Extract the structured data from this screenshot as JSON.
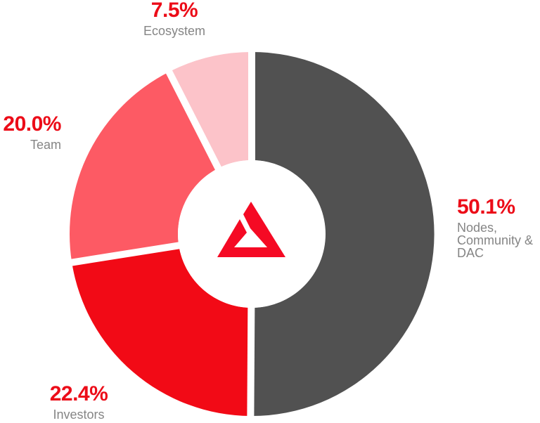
{
  "theme": {
    "background": "#ffffff",
    "label_red": "#ec0c18",
    "label_gray": "#858585"
  },
  "logo": {
    "name": "red-triangle-brand-mark",
    "color": "#f50a24"
  },
  "chart_data": {
    "type": "donut",
    "title": "Token distribution donut chart",
    "legend_position": "around-chart",
    "center": [
      358,
      333
    ],
    "outer_radius": 259,
    "inner_radius": 105,
    "start_angle_deg": 0,
    "direction": "clockwise",
    "separator": {
      "color": "#ffffff",
      "width": 10
    },
    "slices": [
      {
        "label": "Nodes, Community & DAC",
        "value_pct": 50.1,
        "display": "50.1%",
        "color": "#515151"
      },
      {
        "label": "Investors",
        "value_pct": 22.4,
        "display": "22.4%",
        "color": "#f20a16"
      },
      {
        "label": "Team",
        "value_pct": 20.0,
        "display": "20.0%",
        "color": "#fd5a64"
      },
      {
        "label": "Ecosystem",
        "value_pct": 7.5,
        "display": "7.5%",
        "color": "#fcc3c9"
      }
    ]
  },
  "labels": {
    "ecosystem": {
      "pct": "7.5%",
      "name": "Ecosystem"
    },
    "team": {
      "pct": "20.0%",
      "name": "Team"
    },
    "nodes": {
      "pct": "50.1%",
      "lines": [
        "Nodes,",
        "Community &",
        "DAC"
      ]
    },
    "investors": {
      "pct": "22.4%",
      "name": "Investors"
    }
  }
}
